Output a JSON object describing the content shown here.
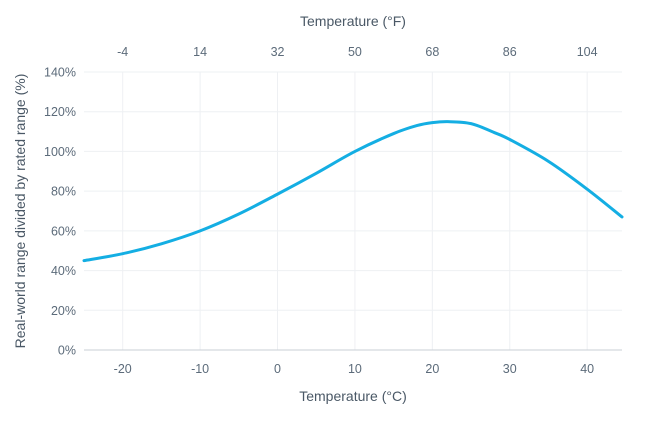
{
  "chart_data": {
    "type": "line",
    "xlabel": "Temperature (°C)",
    "x2label": "Temperature (°F)",
    "ylabel": "Real-world range divided by rated range (%)",
    "xlim": [
      -25,
      44.5
    ],
    "ylim": [
      0,
      140
    ],
    "x_ticks": [
      -20,
      -10,
      0,
      10,
      20,
      30,
      40
    ],
    "x_tick_labels": [
      "-20",
      "-10",
      "0",
      "10",
      "20",
      "30",
      "40"
    ],
    "x2_ticks": [
      -4,
      14,
      32,
      50,
      68,
      86,
      104
    ],
    "x2_tick_labels": [
      "-4",
      "14",
      "32",
      "50",
      "68",
      "86",
      "104"
    ],
    "y_ticks": [
      0,
      20,
      40,
      60,
      80,
      100,
      120,
      140
    ],
    "y_tick_labels": [
      "0%",
      "20%",
      "40%",
      "60%",
      "80%",
      "100%",
      "120%",
      "140%"
    ],
    "grid": true,
    "line_color": "#14aee3",
    "series": [
      {
        "x": [
          -25,
          -20,
          -15,
          -10,
          -5,
          0,
          5,
          10,
          15,
          18,
          20,
          22,
          25,
          28,
          30,
          35,
          40,
          44.5
        ],
        "values": [
          45,
          48.5,
          53.5,
          60,
          68.5,
          78.5,
          89,
          100,
          109,
          113,
          114.5,
          115,
          114,
          109.5,
          106,
          95,
          81,
          67
        ]
      }
    ]
  }
}
